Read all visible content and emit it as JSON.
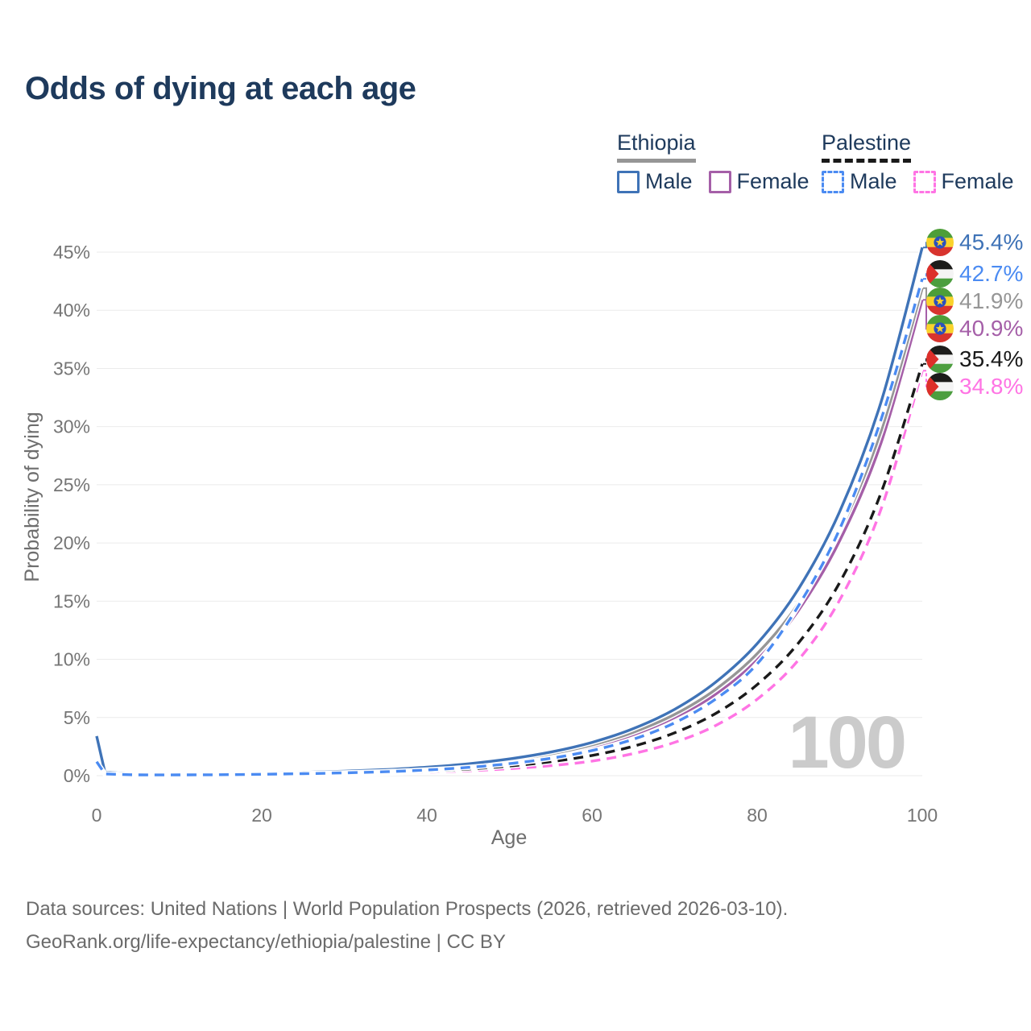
{
  "header": {
    "title": "Odds of dying at each age"
  },
  "legend": {
    "groups": [
      {
        "country": "Ethiopia",
        "line_style": "solid",
        "line_color": "#969696",
        "items": [
          {
            "label": "Male",
            "color": "#3f73b7",
            "style": "solid"
          },
          {
            "label": "Female",
            "color": "#a55fa8",
            "style": "solid"
          }
        ]
      },
      {
        "country": "Palestine",
        "line_style": "dashed",
        "line_color": "#1a1a1a",
        "items": [
          {
            "label": "Male",
            "color": "#4b8bf2",
            "style": "dashed"
          },
          {
            "label": "Female",
            "color": "#ff74e4",
            "style": "dashed"
          }
        ]
      }
    ]
  },
  "chart_data": {
    "type": "line",
    "title": "Odds of dying at each age",
    "xlabel": "Age",
    "ylabel": "Probability of dying",
    "watermark": "100",
    "x_ticks": [
      0,
      20,
      40,
      60,
      80,
      100
    ],
    "y_ticks_pct": [
      0,
      5,
      10,
      15,
      20,
      25,
      30,
      35,
      40,
      45
    ],
    "xlim": [
      0,
      100
    ],
    "ylim_pct": [
      0,
      46.5
    ],
    "grid": "horizontal",
    "legend_position": "top-right",
    "ages": [
      0,
      1,
      5,
      10,
      15,
      20,
      25,
      30,
      35,
      40,
      45,
      50,
      55,
      60,
      65,
      70,
      75,
      80,
      85,
      90,
      95,
      100
    ],
    "series": [
      {
        "name": "Ethiopia Male",
        "country": "Ethiopia",
        "sex": "male",
        "flag": "ethiopia_flag",
        "color": "#3f73b7",
        "dashed": false,
        "end_label": "45.4%",
        "end_value_pct": 45.4,
        "values": [
          3.4,
          0.3,
          0.14,
          0.12,
          0.14,
          0.2,
          0.28,
          0.38,
          0.52,
          0.73,
          1.02,
          1.44,
          2.03,
          2.86,
          4.04,
          5.7,
          8.05,
          11.35,
          16.05,
          22.7,
          32.1,
          45.4
        ]
      },
      {
        "name": "Palestine Male",
        "country": "Palestine",
        "sex": "male",
        "flag": "palestine_flag",
        "color": "#4b8bf2",
        "dashed": true,
        "end_label": "42.7%",
        "end_value_pct": 42.7,
        "values": [
          1.2,
          0.15,
          0.07,
          0.07,
          0.08,
          0.12,
          0.17,
          0.24,
          0.34,
          0.49,
          0.71,
          1.03,
          1.49,
          2.16,
          3.13,
          4.54,
          6.6,
          9.6,
          14.6,
          21.2,
          30.6,
          42.7
        ]
      },
      {
        "name": "Ethiopia Both sexes",
        "country": "Ethiopia",
        "sex": "both",
        "flag": "ethiopia_flag",
        "color": "#969696",
        "dashed": false,
        "end_label": "41.9%",
        "end_value_pct": 41.9,
        "values": [
          3.15,
          0.28,
          0.13,
          0.11,
          0.13,
          0.18,
          0.26,
          0.35,
          0.48,
          0.67,
          0.94,
          1.33,
          1.87,
          2.64,
          3.73,
          5.26,
          7.43,
          10.48,
          14.8,
          21.0,
          29.6,
          41.9
        ]
      },
      {
        "name": "Ethiopia Female",
        "country": "Ethiopia",
        "sex": "female",
        "flag": "ethiopia_flag",
        "color": "#a55fa8",
        "dashed": false,
        "end_label": "40.9%",
        "end_value_pct": 40.9,
        "values": [
          2.85,
          0.26,
          0.12,
          0.1,
          0.12,
          0.17,
          0.24,
          0.32,
          0.44,
          0.62,
          0.87,
          1.24,
          1.76,
          2.48,
          3.52,
          5.0,
          7.0,
          9.95,
          14.2,
          20.2,
          28.6,
          40.9
        ]
      },
      {
        "name": "Palestine Both sexes",
        "country": "Palestine",
        "sex": "both",
        "flag": "palestine_flag",
        "color": "#1a1a1a",
        "dashed": true,
        "end_label": "35.4%",
        "end_value_pct": 35.4,
        "values": [
          1.1,
          0.14,
          0.06,
          0.06,
          0.07,
          0.1,
          0.14,
          0.2,
          0.28,
          0.4,
          0.57,
          0.83,
          1.2,
          1.74,
          2.53,
          3.68,
          5.36,
          7.82,
          11.4,
          16.6,
          24.3,
          35.4
        ]
      },
      {
        "name": "Palestine Female",
        "country": "Palestine",
        "sex": "female",
        "flag": "palestine_flag",
        "color": "#ff74e4",
        "dashed": true,
        "end_label": "34.8%",
        "end_value_pct": 34.8,
        "values": [
          1.0,
          0.13,
          0.05,
          0.05,
          0.06,
          0.08,
          0.11,
          0.15,
          0.21,
          0.3,
          0.42,
          0.6,
          0.86,
          1.25,
          1.9,
          2.86,
          4.32,
          6.56,
          9.95,
          15.1,
          22.9,
          34.8
        ]
      }
    ],
    "style": {
      "grid_color": "#ebebeb",
      "tick_color": "#757575",
      "axis_title_color": "#6e6e6e",
      "watermark_color": "#cbcbcb"
    }
  },
  "icons": {
    "ethiopia_flag": {
      "green": "#4d9e38",
      "yellow": "#fad32b",
      "red": "#d8342e",
      "blue": "#2b50bd",
      "emblem": "#fad32b"
    },
    "palestine_flag": {
      "black": "#1d1d1b",
      "white": "#f4f4f4",
      "green": "#4c9e3f",
      "red": "#dd2f2a"
    }
  },
  "footer": {
    "line1": "Data sources: United Nations | World Population Prospects (2026, retrieved 2026-03-10).",
    "line2": "GeoRank.org/life-expectancy/ethiopia/palestine | CC BY"
  }
}
